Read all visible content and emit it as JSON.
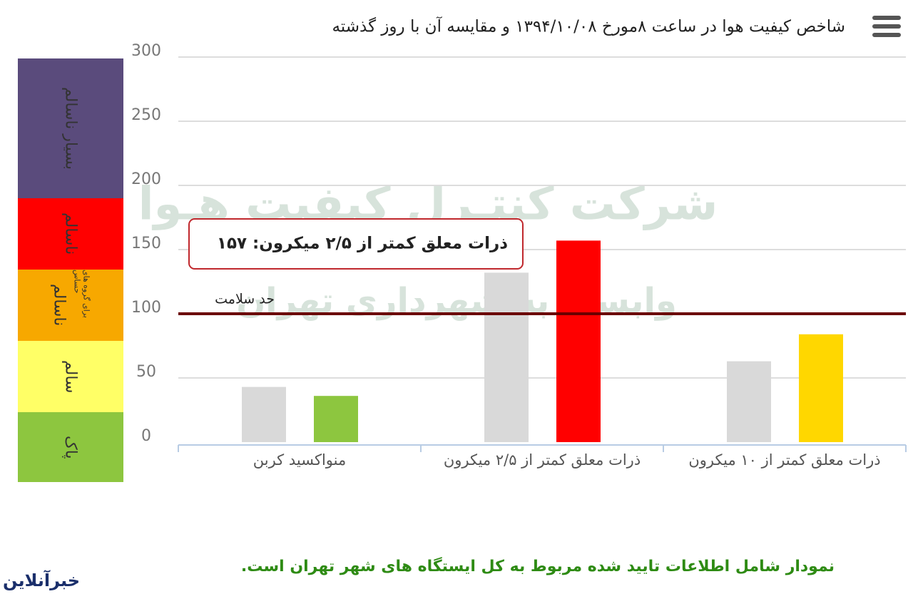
{
  "header": {
    "title": "شاخص کیفیت هوا در ساعت ۸مورخ ۱۳۹۴/۱۰/۰۸ و مقایسه آن با روز گذشته"
  },
  "chart_data": {
    "type": "bar",
    "categories": [
      "منواکسید کربن",
      "ذرات معلق کمتر از ۲/۵ میکرون",
      "ذرات معلق کمتر از ۱۰ میکرون"
    ],
    "series": [
      {
        "values": [
          43,
          132,
          63
        ],
        "color": "#d9d9d9"
      },
      {
        "values": [
          36,
          157,
          84
        ],
        "colors": [
          "#8dc63f",
          "#ff0000",
          "#ffd700"
        ]
      }
    ],
    "ylim": [
      0,
      300
    ],
    "yticks": [
      0,
      50,
      100,
      150,
      200,
      250,
      300
    ],
    "grid": true,
    "reference_line": {
      "value": 100,
      "label": "حد سلامت",
      "color": "#6b0000"
    },
    "tooltip": "ذرات معلق کمتر از ۲/۵ میکرون: ۱۵۷",
    "watermark": [
      "شرکت کنتـرل کیفیت هـوا",
      "وابسته به شهرداری تهران"
    ]
  },
  "legend_scale": [
    {
      "label": "بسیار ناسالم",
      "color": "#5a4b7c"
    },
    {
      "label": "ناسالم",
      "color": "#ff0000"
    },
    {
      "label": "ناسالم",
      "sublabel": "برای گروه های حساس",
      "color": "#f7a800"
    },
    {
      "label": "سالم",
      "color": "#ffff66"
    },
    {
      "label": "پاک",
      "color": "#8dc63f"
    }
  ],
  "footer": "نمودار شامل اطلاعات تایید شده مربوط به کل ایستگاه های شهر تهران است.",
  "logo": "خبرآنلاین"
}
